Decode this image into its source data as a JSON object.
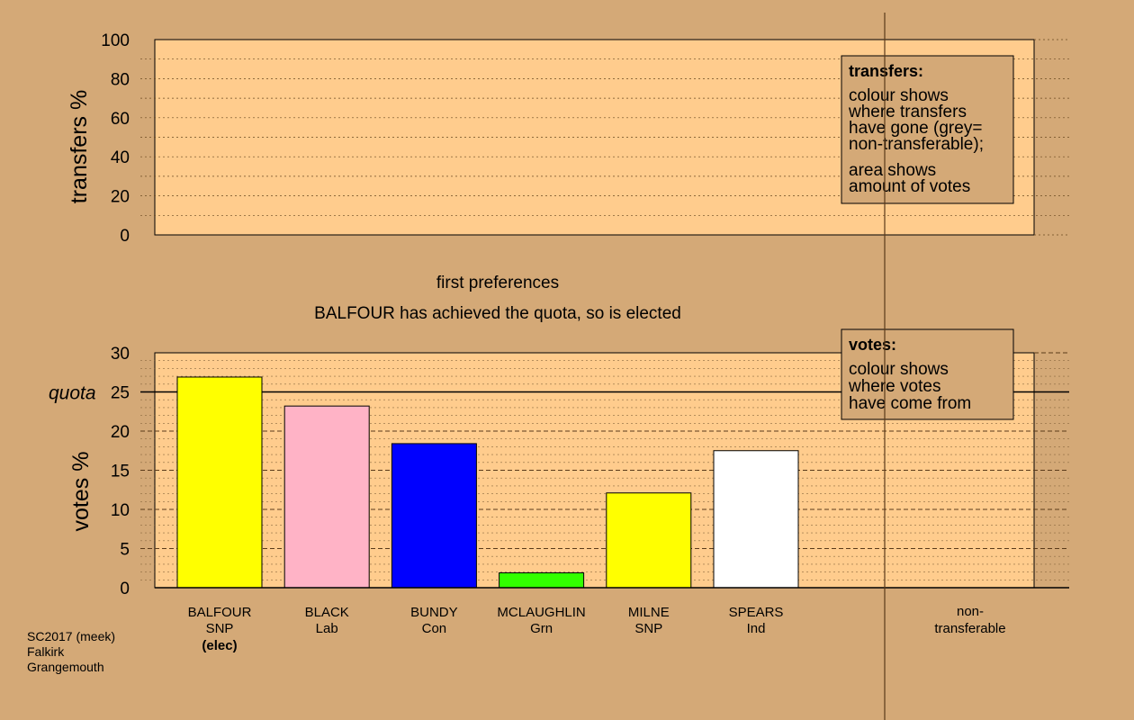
{
  "colors": {
    "background": "#d4a977",
    "plot_fill": "#ffcc8d",
    "legend_fill": "#d4a977"
  },
  "transfers_panel": {
    "ylabel": "transfers %",
    "yticks": [
      "0",
      "20",
      "40",
      "60",
      "80",
      "100"
    ],
    "legend": {
      "title": "transfers:",
      "lines1": [
        "colour shows",
        "where transfers",
        "have gone (grey=",
        "non-transferable);"
      ],
      "lines2": [
        "area shows",
        "amount of votes"
      ]
    }
  },
  "stage_label": "first preferences",
  "stage_note": "BALFOUR has achieved the quota, so is elected",
  "votes_panel": {
    "ylabel": "votes %",
    "quota_label": "quota",
    "yticks": [
      "0",
      "5",
      "10",
      "15",
      "20",
      "25",
      "30"
    ],
    "legend": {
      "title": "votes:",
      "lines": [
        "colour shows",
        "where votes",
        "have come from"
      ]
    }
  },
  "chart_data": {
    "type": "bar",
    "title": "",
    "xlabel": "",
    "ylabel": "votes %",
    "ylim": [
      0,
      30
    ],
    "quota": 25,
    "categories": [
      "BALFOUR",
      "BLACK",
      "BUNDY",
      "MCLAUGHLIN",
      "MILNE",
      "SPEARS"
    ],
    "parties": [
      "SNP",
      "Lab",
      "Con",
      "Grn",
      "SNP",
      "Ind"
    ],
    "status": [
      "(elec)",
      "",
      "",
      "",
      "",
      ""
    ],
    "values": [
      26.9,
      23.2,
      18.4,
      1.9,
      12.1,
      17.5
    ],
    "bar_colors": [
      "#ffff00",
      "#ffb3c6",
      "#0000ff",
      "#33ff00",
      "#ffff00",
      "#ffffff"
    ],
    "nontransferable_label": [
      "non-",
      "transferable"
    ],
    "transfers_ylim": [
      0,
      100
    ],
    "grid": true
  },
  "footer": [
    "SC2017 (meek)",
    "Falkirk",
    "Grangemouth"
  ]
}
